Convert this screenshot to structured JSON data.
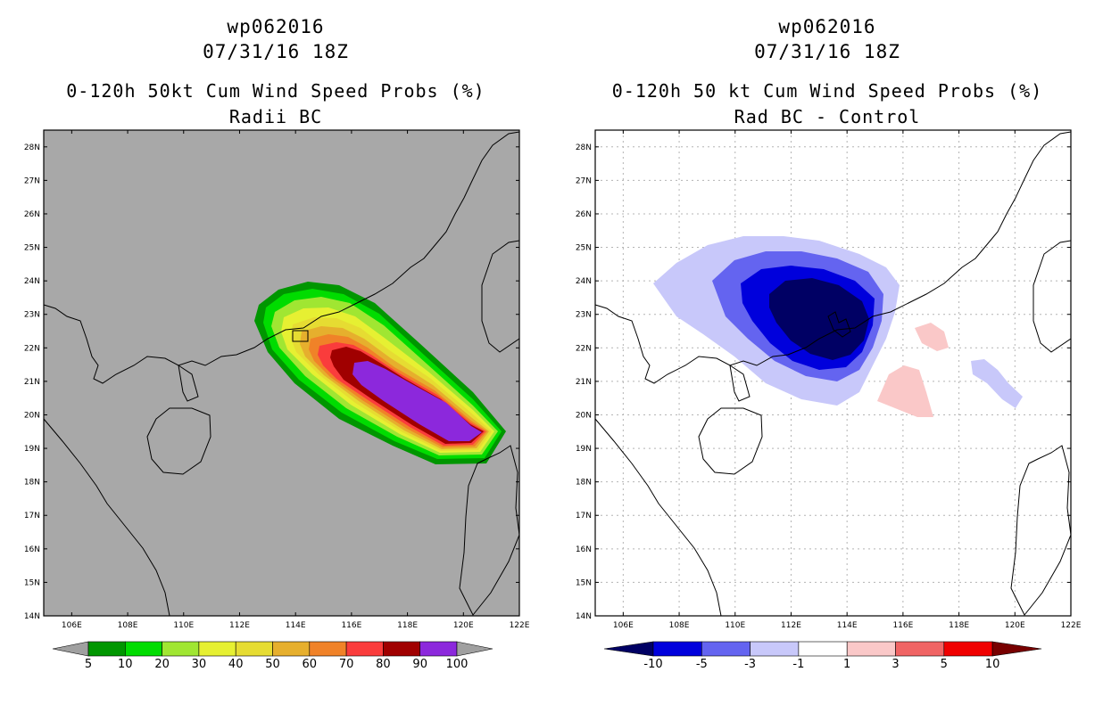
{
  "left_panel": {
    "title_line1": "wp062016",
    "title_line2": "07/31/16 18Z",
    "title_line3": "0-120h 50kt Cum Wind Speed Probs (%)",
    "title_line4": "Radii BC",
    "lat_labels": [
      "14N",
      "15N",
      "16N",
      "17N",
      "18N",
      "19N",
      "20N",
      "21N",
      "22N",
      "23N",
      "24N",
      "25N",
      "26N",
      "27N",
      "28N"
    ],
    "lon_labels": [
      "106E",
      "108E",
      "110E",
      "112E",
      "114E",
      "116E",
      "118E",
      "120E",
      "122E"
    ],
    "colorbar": {
      "labels": [
        "5",
        "10",
        "20",
        "30",
        "40",
        "50",
        "60",
        "70",
        "80",
        "90",
        "100"
      ],
      "colors": [
        "#a0a0a0",
        "#009600",
        "#00dc00",
        "#a0e632",
        "#e6f032",
        "#e6dc32",
        "#e6af2d",
        "#f08228",
        "#fa3c3c",
        "#a00000",
        "#8c28dc",
        "#a0a0a0"
      ]
    },
    "background_color": "#a8a8a8"
  },
  "right_panel": {
    "title_line1": "wp062016",
    "title_line2": "07/31/16 18Z",
    "title_line3": "0-120h 50 kt Cum Wind Speed Probs (%)",
    "title_line4": "Rad BC - Control",
    "lat_labels": [
      "14N",
      "15N",
      "16N",
      "17N",
      "18N",
      "19N",
      "20N",
      "21N",
      "22N",
      "23N",
      "24N",
      "25N",
      "26N",
      "27N",
      "28N"
    ],
    "lon_labels": [
      "106E",
      "108E",
      "110E",
      "112E",
      "114E",
      "116E",
      "118E",
      "120E",
      "122E"
    ],
    "colorbar": {
      "labels": [
        "-10",
        "-5",
        "-3",
        "-1",
        "1",
        "3",
        "5",
        "10"
      ],
      "colors": [
        "#000064",
        "#0000dc",
        "#6464f0",
        "#c8c8fa",
        "#ffffff",
        "#fac8c8",
        "#f06464",
        "#f00000",
        "#780000"
      ]
    },
    "background_color": "#ffffff"
  }
}
